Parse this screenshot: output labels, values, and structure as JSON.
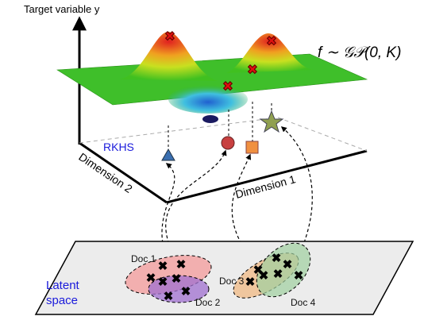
{
  "axes": {
    "y_label": "Target variable y",
    "x_label": "Dimension 1",
    "z_label": "Dimension 2"
  },
  "formula": "f ∼ 𝒢𝒫(0, K)",
  "rkhs_label": "RKHS",
  "latent_space": {
    "label_lines": [
      "Latent",
      "space"
    ]
  },
  "documents": [
    {
      "label": "Doc 1"
    },
    {
      "label": "Doc 2"
    },
    {
      "label": "Doc 3"
    },
    {
      "label": "Doc 4"
    }
  ]
}
